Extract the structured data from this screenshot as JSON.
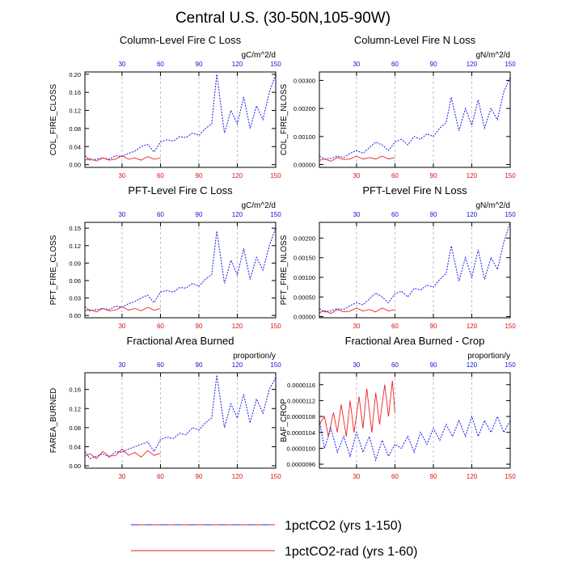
{
  "figure": {
    "title": "Central U.S. (30-50N,105-90W)"
  },
  "legend": {
    "entries": [
      {
        "label": "1pctCO2 (yrs 1-150)",
        "color": "#2a2aee",
        "style": "dashed"
      },
      {
        "label": "1pctCO2-rad (yrs 1-60)",
        "color": "#ee2222",
        "style": "solid"
      }
    ]
  },
  "colors": {
    "series_blue": "#2a2aee",
    "series_red": "#ee2222",
    "bottom_tick_labels": "#dd1111",
    "top_tick_labels": "#1111dd",
    "grid": "#b0b0b0"
  },
  "chart_data": [
    {
      "id": "col_c",
      "type": "line",
      "title": "Column-Level Fire C Loss",
      "ylabel": "COL_FIRE_CLOSS",
      "units": "gC/m^2/d",
      "xlim": [
        1,
        150
      ],
      "ylim": [
        -0.006,
        0.205
      ],
      "yticks": [
        "0.00",
        "0.04",
        "0.08",
        "0.12",
        "0.16",
        "0.20"
      ],
      "ytick_values": [
        0,
        0.04,
        0.08,
        0.12,
        0.16,
        0.2
      ],
      "xticks_bottom": [
        "30",
        "60",
        "90",
        "120",
        "150"
      ],
      "xticks_top": [
        "30",
        "60",
        "90",
        "120",
        "150"
      ],
      "xtick_values": [
        30,
        60,
        90,
        120,
        150
      ],
      "grid": "vertical dashed",
      "series": [
        {
          "key": "blue",
          "style": "dashed",
          "x": [
            1,
            5,
            10,
            15,
            20,
            25,
            30,
            35,
            40,
            45,
            50,
            55,
            60,
            65,
            70,
            75,
            80,
            85,
            90,
            95,
            100,
            104,
            110,
            115,
            120,
            125,
            130,
            135,
            140,
            145,
            150
          ],
          "y": [
            0.02,
            0.01,
            0.012,
            0.015,
            0.012,
            0.02,
            0.018,
            0.025,
            0.03,
            0.04,
            0.045,
            0.028,
            0.05,
            0.055,
            0.052,
            0.062,
            0.06,
            0.07,
            0.065,
            0.08,
            0.09,
            0.2,
            0.07,
            0.12,
            0.09,
            0.15,
            0.08,
            0.13,
            0.1,
            0.16,
            0.2
          ]
        },
        {
          "key": "red",
          "style": "solid",
          "x": [
            1,
            5,
            10,
            15,
            20,
            25,
            30,
            35,
            40,
            45,
            50,
            55,
            60
          ],
          "y": [
            0.01,
            0.013,
            0.008,
            0.015,
            0.01,
            0.012,
            0.02,
            0.012,
            0.015,
            0.01,
            0.018,
            0.012,
            0.015
          ]
        }
      ]
    },
    {
      "id": "col_n",
      "type": "line",
      "title": "Column-Level Fire N Loss",
      "ylabel": "COL_FIRE_NLOSS",
      "units": "gN/m^2/d",
      "xlim": [
        1,
        150
      ],
      "ylim": [
        -0.0001,
        0.0033
      ],
      "yticks": [
        "0.00000",
        "0.00100",
        "0.00200",
        "0.00300"
      ],
      "ytick_values": [
        0,
        0.001,
        0.002,
        0.003
      ],
      "xticks_bottom": [
        "30",
        "60",
        "90",
        "120",
        "150"
      ],
      "xticks_top": [
        "30",
        "60",
        "90",
        "120",
        "150"
      ],
      "xtick_values": [
        30,
        60,
        90,
        120,
        150
      ],
      "grid": "vertical dashed",
      "series": [
        {
          "key": "blue",
          "style": "dashed",
          "x": [
            1,
            5,
            10,
            15,
            20,
            25,
            30,
            35,
            40,
            45,
            50,
            55,
            60,
            65,
            70,
            75,
            80,
            85,
            90,
            95,
            100,
            104,
            110,
            115,
            120,
            125,
            130,
            135,
            140,
            145,
            150
          ],
          "y": [
            0.0003,
            0.0002,
            0.00022,
            0.0003,
            0.00025,
            0.0004,
            0.0005,
            0.0004,
            0.0006,
            0.0008,
            0.0007,
            0.0005,
            0.0008,
            0.0009,
            0.0007,
            0.001,
            0.0009,
            0.0011,
            0.001,
            0.0013,
            0.0015,
            0.0024,
            0.0012,
            0.002,
            0.0014,
            0.0023,
            0.0013,
            0.002,
            0.0016,
            0.0026,
            0.0031
          ]
        },
        {
          "key": "red",
          "style": "solid",
          "x": [
            1,
            5,
            10,
            15,
            20,
            25,
            30,
            35,
            40,
            45,
            50,
            55,
            60
          ],
          "y": [
            0.00015,
            0.0002,
            0.00012,
            0.00025,
            0.00018,
            0.0002,
            0.0003,
            0.0002,
            0.00025,
            0.0002,
            0.0003,
            0.0002,
            0.00025
          ]
        }
      ]
    },
    {
      "id": "pft_c",
      "type": "line",
      "title": "PFT-Level Fire C Loss",
      "ylabel": "PFT_FIRE_CLOSS",
      "units": "gC/m^2/d",
      "xlim": [
        1,
        150
      ],
      "ylim": [
        -0.004,
        0.16
      ],
      "yticks": [
        "0.00",
        "0.03",
        "0.06",
        "0.09",
        "0.12",
        "0.15"
      ],
      "ytick_values": [
        0,
        0.03,
        0.06,
        0.09,
        0.12,
        0.15
      ],
      "xticks_bottom": [
        "30",
        "60",
        "90",
        "120",
        "150"
      ],
      "xticks_top": [
        "30",
        "60",
        "90",
        "120",
        "150"
      ],
      "xtick_values": [
        30,
        60,
        90,
        120,
        150
      ],
      "grid": "vertical dashed",
      "series": [
        {
          "key": "blue",
          "style": "dashed",
          "x": [
            1,
            5,
            10,
            15,
            20,
            25,
            30,
            35,
            40,
            45,
            50,
            55,
            60,
            65,
            70,
            75,
            80,
            85,
            90,
            95,
            100,
            104,
            110,
            115,
            120,
            125,
            130,
            135,
            140,
            145,
            150
          ],
          "y": [
            0.015,
            0.008,
            0.01,
            0.012,
            0.01,
            0.016,
            0.014,
            0.02,
            0.024,
            0.03,
            0.035,
            0.022,
            0.04,
            0.043,
            0.04,
            0.048,
            0.047,
            0.055,
            0.05,
            0.062,
            0.07,
            0.145,
            0.055,
            0.095,
            0.07,
            0.115,
            0.062,
            0.1,
            0.078,
            0.12,
            0.15
          ]
        },
        {
          "key": "red",
          "style": "solid",
          "x": [
            1,
            5,
            10,
            15,
            20,
            25,
            30,
            35,
            40,
            45,
            50,
            55,
            60
          ],
          "y": [
            0.008,
            0.01,
            0.006,
            0.012,
            0.008,
            0.009,
            0.015,
            0.009,
            0.012,
            0.008,
            0.014,
            0.009,
            0.012
          ]
        }
      ]
    },
    {
      "id": "pft_n",
      "type": "line",
      "title": "PFT-Level Fire N Loss",
      "ylabel": "PFT_FIRE_NLOSS",
      "units": "gN/m^2/d",
      "xlim": [
        1,
        150
      ],
      "ylim": [
        -3e-05,
        0.0024
      ],
      "yticks": [
        "0.00000",
        "0.00050",
        "0.00100",
        "0.00150",
        "0.00200"
      ],
      "ytick_values": [
        0,
        0.0005,
        0.001,
        0.0015,
        0.002
      ],
      "xticks_bottom": [
        "30",
        "60",
        "90",
        "120",
        "150"
      ],
      "xticks_top": [
        "30",
        "60",
        "90",
        "120",
        "150"
      ],
      "xtick_values": [
        30,
        60,
        90,
        120,
        150
      ],
      "grid": "vertical dashed",
      "series": [
        {
          "key": "blue",
          "style": "dashed",
          "x": [
            1,
            5,
            10,
            15,
            20,
            25,
            30,
            35,
            40,
            45,
            50,
            55,
            60,
            65,
            70,
            75,
            80,
            85,
            90,
            95,
            100,
            104,
            110,
            115,
            120,
            125,
            130,
            135,
            140,
            145,
            150
          ],
          "y": [
            0.0002,
            0.00012,
            0.00015,
            0.0002,
            0.00018,
            0.00028,
            0.00035,
            0.0003,
            0.00045,
            0.0006,
            0.0005,
            0.00035,
            0.00058,
            0.00065,
            0.0005,
            0.00072,
            0.00068,
            0.0008,
            0.00075,
            0.00095,
            0.0011,
            0.0018,
            0.0009,
            0.0015,
            0.001,
            0.0017,
            0.00095,
            0.0015,
            0.0012,
            0.0019,
            0.0024
          ]
        },
        {
          "key": "red",
          "style": "solid",
          "x": [
            1,
            5,
            10,
            15,
            20,
            25,
            30,
            35,
            40,
            45,
            50,
            55,
            60
          ],
          "y": [
            0.0001,
            0.00015,
            8e-05,
            0.00018,
            0.00012,
            0.00014,
            0.00022,
            0.00014,
            0.00018,
            0.00012,
            0.00022,
            0.00014,
            0.00018
          ]
        }
      ]
    },
    {
      "id": "farea",
      "type": "line",
      "title": "Fractional Area Burned",
      "ylabel": "FAREA_BURNED",
      "units": "proportion/y",
      "xlim": [
        1,
        150
      ],
      "ylim": [
        -0.005,
        0.195
      ],
      "yticks": [
        "0.00",
        "0.04",
        "0.08",
        "0.12",
        "0.16"
      ],
      "ytick_values": [
        0,
        0.04,
        0.08,
        0.12,
        0.16
      ],
      "xticks_bottom": [
        "30",
        "60",
        "90",
        "120",
        "150"
      ],
      "xticks_top": [
        "30",
        "60",
        "90",
        "120",
        "150"
      ],
      "xtick_values": [
        30,
        60,
        90,
        120,
        150
      ],
      "grid": "vertical dashed",
      "series": [
        {
          "key": "blue",
          "style": "dashed",
          "x": [
            1,
            5,
            10,
            15,
            20,
            25,
            30,
            35,
            40,
            45,
            50,
            55,
            60,
            65,
            70,
            75,
            80,
            85,
            90,
            95,
            100,
            104,
            110,
            115,
            120,
            125,
            130,
            135,
            140,
            145,
            150
          ],
          "y": [
            0.03,
            0.015,
            0.02,
            0.025,
            0.018,
            0.03,
            0.028,
            0.035,
            0.04,
            0.045,
            0.05,
            0.03,
            0.055,
            0.06,
            0.057,
            0.068,
            0.065,
            0.08,
            0.075,
            0.09,
            0.1,
            0.19,
            0.08,
            0.13,
            0.1,
            0.15,
            0.09,
            0.14,
            0.11,
            0.16,
            0.185
          ]
        },
        {
          "key": "red",
          "style": "solid",
          "x": [
            1,
            5,
            10,
            15,
            20,
            25,
            30,
            35,
            40,
            45,
            50,
            55,
            60
          ],
          "y": [
            0.02,
            0.025,
            0.015,
            0.03,
            0.02,
            0.022,
            0.035,
            0.022,
            0.028,
            0.018,
            0.032,
            0.022,
            0.026
          ]
        }
      ]
    },
    {
      "id": "crop",
      "type": "line",
      "title": "Fractional Area Burned - Crop",
      "ylabel": "BAF_CROP",
      "units": "proportion/y",
      "xlim": [
        1,
        150
      ],
      "ylim": [
        9.5e-06,
        1.19e-05
      ],
      "yticks": [
        "0.0000096",
        "0.0000100",
        "0.0000104",
        "0.0000108",
        "0.0000112",
        "0.0000116"
      ],
      "ytick_values": [
        9.6e-06,
        1e-05,
        1.04e-05,
        1.08e-05,
        1.12e-05,
        1.16e-05
      ],
      "xticks_bottom": [
        "30",
        "60",
        "90",
        "120",
        "150"
      ],
      "xticks_top": [
        "30",
        "60",
        "90",
        "120",
        "150"
      ],
      "xtick_values": [
        30,
        60,
        90,
        120,
        150
      ],
      "grid": "vertical dashed",
      "series": [
        {
          "key": "blue",
          "style": "dashed",
          "x": [
            1,
            5,
            10,
            15,
            20,
            25,
            30,
            35,
            40,
            45,
            50,
            55,
            60,
            65,
            70,
            75,
            80,
            85,
            90,
            95,
            100,
            105,
            110,
            115,
            120,
            125,
            130,
            135,
            140,
            145,
            150
          ],
          "y": [
            1.07e-05,
            1e-05,
            1.05e-05,
            9.9e-06,
            1.03e-05,
            9.8e-06,
            1.04e-05,
            9.9e-06,
            1.03e-05,
            9.7e-06,
            1.02e-05,
            9.8e-06,
            1.01e-05,
            1e-05,
            1.03e-05,
            9.9e-06,
            1.04e-05,
            1.01e-05,
            1.05e-05,
            1.02e-05,
            1.06e-05,
            1.03e-05,
            1.07e-05,
            1.03e-05,
            1.08e-05,
            1.03e-05,
            1.07e-05,
            1.04e-05,
            1.08e-05,
            1.04e-05,
            1.07e-05
          ]
        },
        {
          "key": "red",
          "style": "solid",
          "x": [
            1,
            5,
            8,
            12,
            15,
            18,
            22,
            25,
            28,
            32,
            35,
            38,
            42,
            45,
            48,
            52,
            55,
            58,
            60
          ],
          "y": [
            1.06e-05,
            1.08e-05,
            1.03e-05,
            1.09e-05,
            1.04e-05,
            1.11e-05,
            1.03e-05,
            1.12e-05,
            1.04e-05,
            1.13e-05,
            1.05e-05,
            1.15e-05,
            1.04e-05,
            1.14e-05,
            1.06e-05,
            1.16e-05,
            1.08e-05,
            1.17e-05,
            1.09e-05
          ]
        }
      ]
    }
  ]
}
